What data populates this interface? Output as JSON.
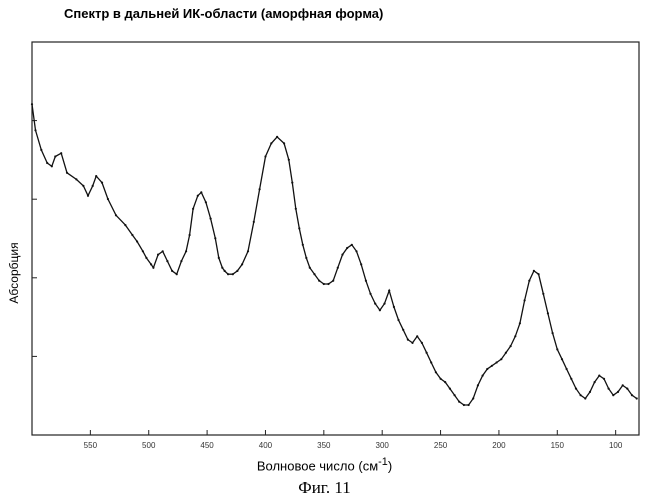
{
  "figure_caption": "Фиг. 11",
  "chart_data": {
    "type": "line",
    "title": "Спектр в дальней ИК-области (аморфная форма)",
    "xlabel": "Волновое число (см",
    "xlabel_sup": "-1",
    "xlabel_close": ")",
    "ylabel": "Абсорбция",
    "xlim": [
      600,
      80
    ],
    "ylim": [
      0,
      100
    ],
    "grid": false,
    "x_ticks": [
      {
        "value": 550,
        "label": "550"
      },
      {
        "value": 500,
        "label": "500"
      },
      {
        "value": 450,
        "label": "450"
      },
      {
        "value": 400,
        "label": "400"
      },
      {
        "value": 350,
        "label": "350"
      },
      {
        "value": 300,
        "label": "300"
      },
      {
        "value": 250,
        "label": "250"
      },
      {
        "value": 200,
        "label": "200"
      },
      {
        "value": 150,
        "label": "150"
      },
      {
        "value": 100,
        "label": "100"
      }
    ],
    "series": [
      {
        "color": "#111111",
        "x": [
          600,
          597,
          592,
          587,
          583,
          580,
          575,
          570,
          562,
          556,
          552,
          548,
          545,
          540,
          535,
          528,
          520,
          514,
          510,
          505,
          502,
          498,
          496,
          492,
          488,
          484,
          480,
          476,
          472,
          468,
          465,
          462,
          458,
          455,
          451,
          447,
          443,
          440,
          437,
          435,
          432,
          428,
          424,
          420,
          415,
          410,
          405,
          400,
          395,
          390,
          384,
          380,
          377,
          374,
          371,
          368,
          365,
          362,
          358,
          354,
          350,
          346,
          342,
          338,
          334,
          330,
          326,
          322,
          318,
          314,
          310,
          306,
          302,
          298,
          294,
          290,
          286,
          282,
          278,
          274,
          270,
          266,
          262,
          258,
          254,
          250,
          246,
          242,
          238,
          234,
          230,
          226,
          222,
          218,
          214,
          210,
          206,
          202,
          198,
          194,
          190,
          186,
          182,
          178,
          174,
          170,
          166,
          162,
          158,
          154,
          150,
          146,
          142,
          138,
          134,
          130,
          126,
          122,
          118,
          114,
          110,
          106,
          102,
          98,
          94,
          90,
          86,
          82
        ],
        "values": [
          92,
          84,
          78,
          74,
          73,
          76,
          77,
          71,
          69,
          67,
          64,
          67,
          70,
          68,
          63,
          58,
          55,
          52,
          50,
          47,
          45,
          43,
          42,
          46,
          47,
          44,
          41,
          40,
          44,
          47,
          52,
          60,
          64,
          65,
          62,
          57,
          51,
          45,
          42,
          41,
          40,
          40,
          41,
          43,
          47,
          56,
          66,
          76,
          80,
          82,
          80,
          75,
          68,
          60,
          54,
          49,
          45,
          42,
          40,
          38,
          37,
          37,
          38,
          42,
          46,
          48,
          49,
          47,
          43,
          38,
          34,
          31,
          29,
          31,
          35,
          30,
          26,
          23,
          20,
          19,
          21,
          19,
          16,
          13,
          10,
          8,
          7,
          5,
          3,
          1,
          0,
          0,
          2,
          6,
          9,
          11,
          12,
          13,
          14,
          16,
          18,
          21,
          25,
          32,
          38,
          41,
          40,
          34,
          28,
          22,
          17,
          14,
          11,
          8,
          5,
          3,
          2,
          4,
          7,
          9,
          8,
          5,
          3,
          4,
          6,
          5,
          3,
          2
        ]
      }
    ]
  }
}
